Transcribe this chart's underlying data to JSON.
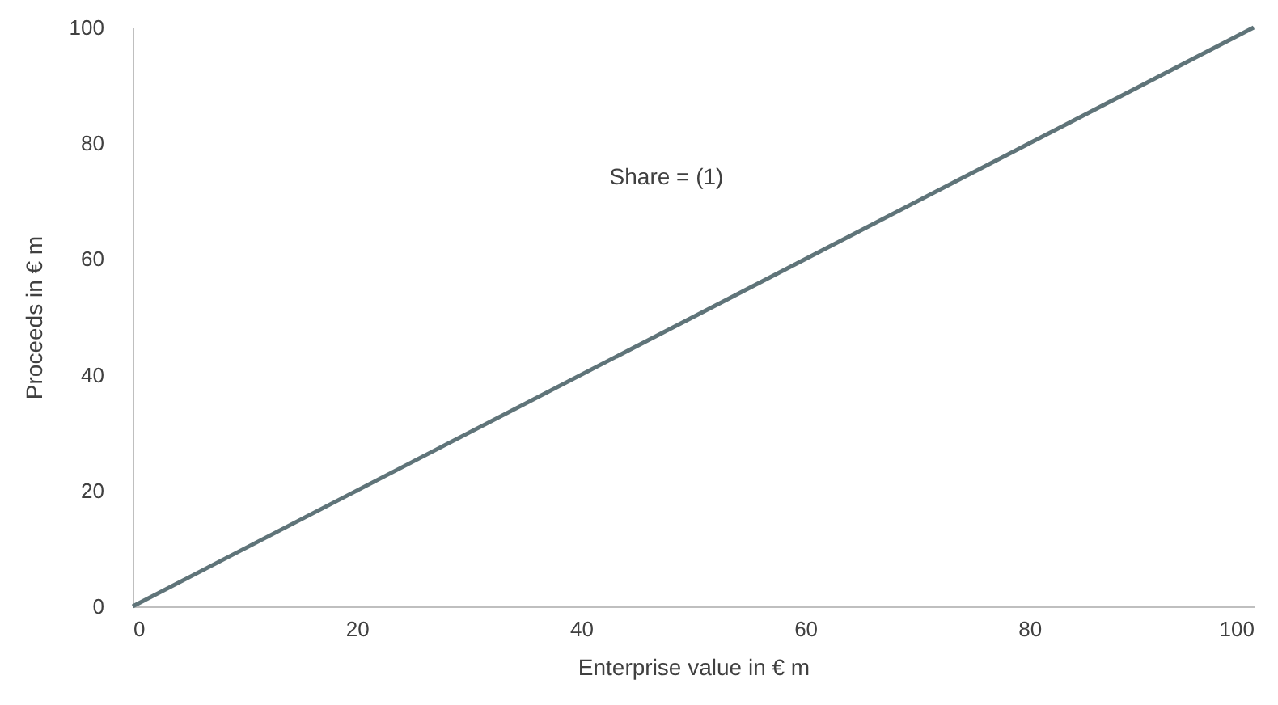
{
  "chart_data": {
    "type": "line",
    "xlabel": "Enterprise value in € m",
    "ylabel": "Proceeds in € m",
    "annotations": [
      "Share = (1)"
    ],
    "x": [
      0,
      100
    ],
    "series": [
      {
        "color": "#5f7479",
        "values": [
          0,
          100
        ]
      }
    ],
    "xlim": [
      0,
      100
    ],
    "xticks": [
      0,
      20,
      40,
      60,
      80,
      100
    ],
    "ylim": [
      0,
      100
    ],
    "yticks": [
      0,
      20,
      40,
      60,
      80,
      100
    ],
    "marker": "none",
    "line_style": "solid"
  }
}
